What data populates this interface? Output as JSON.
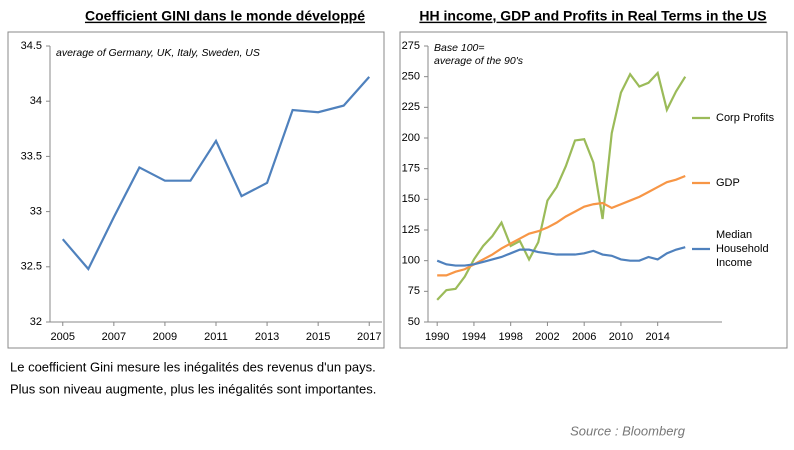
{
  "chart_data": [
    {
      "type": "line",
      "title": "Coefficient GINI dans le monde développé",
      "annotation": [
        "average of Germany, UK, Italy, Sweden, US"
      ],
      "x": [
        2005,
        2006,
        2007,
        2008,
        2009,
        2010,
        2011,
        2012,
        2013,
        2014,
        2015,
        2016,
        2017
      ],
      "series": [
        {
          "name": null,
          "color": "#4f81bd",
          "values": [
            32.75,
            32.48,
            32.95,
            33.4,
            33.28,
            33.28,
            33.64,
            33.14,
            33.26,
            33.92,
            33.9,
            33.96,
            34.22
          ]
        }
      ],
      "xlim": [
        2004.5,
        2017.5
      ],
      "xticks": [
        2005,
        2007,
        2009,
        2011,
        2013,
        2015,
        2017
      ],
      "ylim": [
        32,
        34.5
      ],
      "yticks": [
        32,
        32.5,
        33,
        33.5,
        34,
        34.5
      ],
      "grid": false
    },
    {
      "type": "line",
      "title": "HH income, GDP and Profits in Real Terms in the US",
      "annotation": [
        "Base 100=",
        "average of the 90's"
      ],
      "x": [
        1990,
        1991,
        1992,
        1993,
        1994,
        1995,
        1996,
        1997,
        1998,
        1999,
        2000,
        2001,
        2002,
        2003,
        2004,
        2005,
        2006,
        2007,
        2008,
        2009,
        2010,
        2011,
        2012,
        2013,
        2014,
        2015,
        2016,
        2017
      ],
      "series": [
        {
          "name": "Corp Profits",
          "color": "#9bbb59",
          "values": [
            68,
            76,
            77,
            87,
            101,
            112,
            120,
            131,
            112,
            116,
            101,
            115,
            149,
            160,
            177,
            198,
            199,
            180,
            134,
            204,
            237,
            252,
            242,
            245,
            253,
            223,
            238,
            250
          ]
        },
        {
          "name": "GDP",
          "color": "#f79646",
          "values": [
            88,
            88,
            91,
            93,
            97,
            101,
            105,
            110,
            114,
            118,
            122,
            124,
            127,
            131,
            136,
            140,
            144,
            146,
            147,
            143,
            146,
            149,
            152,
            156,
            160,
            164,
            166,
            169
          ]
        },
        {
          "name": "Median Household Income",
          "color": "#4f81bd",
          "values": [
            100,
            97,
            96,
            96,
            97,
            99,
            101,
            103,
            106,
            109,
            109,
            107,
            106,
            105,
            105,
            105,
            106,
            108,
            105,
            104,
            101,
            100,
            100,
            103,
            101,
            106,
            109,
            111
          ]
        }
      ],
      "xlim": [
        1989,
        2021
      ],
      "xticks": [
        1990,
        1994,
        1998,
        2002,
        2006,
        2010,
        2014
      ],
      "ylim": [
        50,
        275
      ],
      "yticks": [
        50,
        75,
        100,
        125,
        150,
        175,
        200,
        225,
        250,
        275
      ],
      "grid": false,
      "legend": "right"
    }
  ],
  "caption": [
    "Le coefficient Gini mesure les inégalités des revenus d'un pays.",
    "Plus son niveau augmente, plus les inégalités sont importantes."
  ],
  "source": "Source : Bloomberg"
}
